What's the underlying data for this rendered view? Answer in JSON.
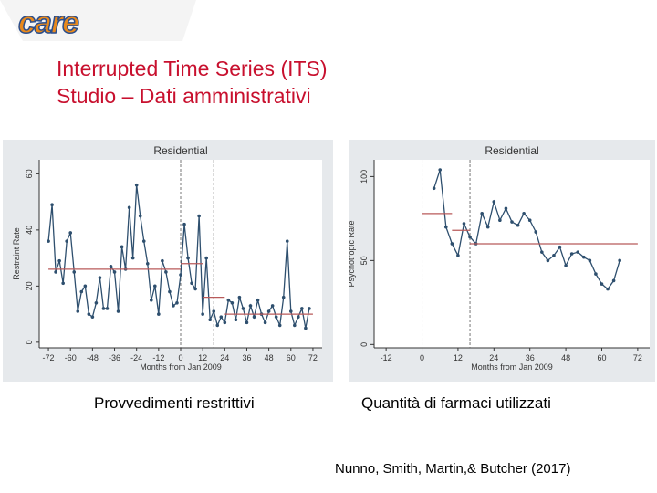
{
  "logo": "care",
  "title": [
    "Interrupted Time Series (ITS)",
    "Studio – Dati amministrativi"
  ],
  "captions": [
    "Provvedimenti restrittivi",
    "Quantità di farmaci utilizzati"
  ],
  "citation": "Nunno, Smith, Martin,& Butcher (2017)",
  "chart_data": [
    {
      "type": "line",
      "title": "Residential",
      "x_label": "Months from Jan 2009",
      "y_label": "Restraint Rate",
      "color": "#2e4f6e",
      "fit_color": "#b85a5a",
      "x": [
        -72,
        -70,
        -68,
        -66,
        -64,
        -62,
        -60,
        -58,
        -56,
        -54,
        -52,
        -50,
        -48,
        -46,
        -44,
        -42,
        -40,
        -38,
        -36,
        -34,
        -32,
        -30,
        -28,
        -26,
        -24,
        -22,
        -20,
        -18,
        -16,
        -14,
        -12,
        -10,
        -8,
        -6,
        -4,
        -2,
        0,
        2,
        4,
        6,
        8,
        10,
        12,
        14,
        16,
        18,
        20,
        22,
        24,
        26,
        28,
        30,
        32,
        34,
        36,
        38,
        40,
        42,
        44,
        46,
        48,
        50,
        52,
        54,
        56,
        58,
        60,
        62,
        64,
        66,
        68,
        70
      ],
      "values": [
        36,
        49,
        25,
        29,
        21,
        36,
        39,
        25,
        11,
        18,
        20,
        10,
        9,
        14,
        23,
        12,
        12,
        27,
        25,
        11,
        34,
        26,
        48,
        30,
        56,
        45,
        36,
        28,
        15,
        20,
        10,
        29,
        25,
        18,
        13,
        14,
        24,
        42,
        30,
        21,
        19,
        45,
        10,
        30,
        8,
        11,
        6,
        9,
        7,
        15,
        14,
        8,
        16,
        12,
        7,
        13,
        9,
        15,
        10,
        7,
        11,
        13,
        9,
        6,
        16,
        36,
        11,
        6,
        9,
        12,
        5,
        12
      ],
      "fit_lines": [
        {
          "x": [
            -72,
            0
          ],
          "values": [
            26,
            26
          ]
        },
        {
          "x": [
            0,
            12
          ],
          "values": [
            28,
            28
          ]
        },
        {
          "x": [
            12,
            24
          ],
          "values": [
            16,
            16
          ]
        },
        {
          "x": [
            24,
            72
          ],
          "values": [
            10,
            10
          ]
        }
      ],
      "interruptions": [
        0,
        18
      ],
      "xlim": [
        -77,
        77
      ],
      "ylim": [
        -2,
        65
      ],
      "xticks": [
        -72,
        -60,
        -48,
        -36,
        -24,
        -12,
        0,
        12,
        24,
        36,
        48,
        60,
        72
      ],
      "yticks": [
        0,
        20,
        40,
        60
      ]
    },
    {
      "type": "line",
      "title": "Residential",
      "x_label": "Months from Jan 2009",
      "y_label": "Psychotropic Rate",
      "color": "#2e4f6e",
      "fit_color": "#b85a5a",
      "x": [
        4,
        6,
        8,
        10,
        12,
        14,
        16,
        18,
        20,
        22,
        24,
        26,
        28,
        30,
        32,
        34,
        36,
        38,
        40,
        42,
        44,
        46,
        48,
        50,
        52,
        54,
        56,
        58,
        60,
        62,
        64,
        66
      ],
      "values": [
        93,
        104,
        70,
        60,
        53,
        72,
        64,
        60,
        78,
        70,
        85,
        74,
        81,
        73,
        71,
        78,
        74,
        67,
        55,
        50,
        53,
        58,
        47,
        54,
        55,
        52,
        50,
        42,
        36,
        33,
        38,
        50
      ],
      "fit_lines": [
        {
          "x": [
            0,
            10
          ],
          "values": [
            78,
            78
          ]
        },
        {
          "x": [
            10,
            16
          ],
          "values": [
            68,
            68
          ]
        },
        {
          "x": [
            16,
            72
          ],
          "values": [
            60,
            60
          ]
        }
      ],
      "interruptions": [
        0,
        16
      ],
      "xlim": [
        -16,
        76
      ],
      "ylim": [
        -2,
        110
      ],
      "xticks": [
        -12,
        0,
        12,
        24,
        36,
        48,
        60,
        72
      ],
      "yticks": [
        0,
        50,
        100
      ]
    }
  ]
}
